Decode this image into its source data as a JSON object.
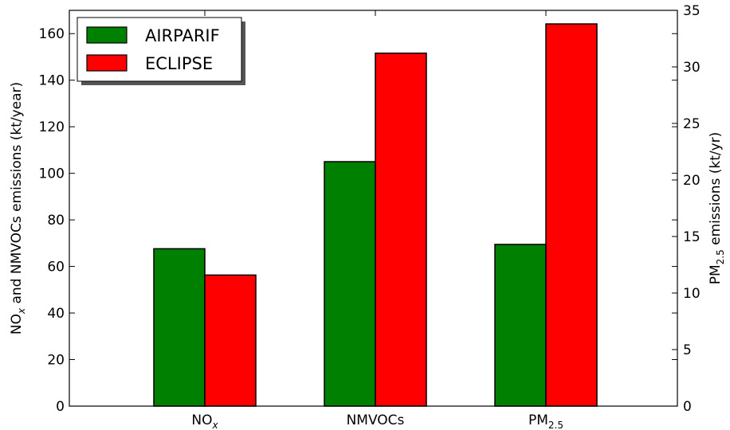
{
  "chart_data": {
    "type": "bar",
    "categories": [
      "NOx",
      "NMVOCs",
      "PM2.5"
    ],
    "series": [
      {
        "name": "AIRPARIF",
        "color": "#008000",
        "axis": "left",
        "values": [
          67.6,
          105,
          null
        ]
      },
      {
        "name": "ECLIPSE",
        "color": "#ff0000",
        "axis": "left",
        "values": [
          56.3,
          151.6,
          null
        ]
      },
      {
        "name": "AIRPARIF",
        "color": "#008000",
        "axis": "right",
        "values": [
          null,
          null,
          14.3
        ]
      },
      {
        "name": "ECLIPSE",
        "color": "#ff0000",
        "axis": "right",
        "values": [
          null,
          null,
          33.8
        ]
      }
    ],
    "ylim_left": [
      0,
      170
    ],
    "yticks_left": [
      0,
      20,
      40,
      60,
      80,
      100,
      120,
      140,
      160
    ],
    "ylim_right": [
      0,
      35
    ],
    "yticks_right": [
      0,
      5,
      10,
      15,
      20,
      25,
      30,
      35
    ],
    "xtick_labels": [
      {
        "base": "NO",
        "sub": "x",
        "sub_italic": true
      },
      {
        "base": "NMVOCs",
        "sub": "",
        "sub_italic": false
      },
      {
        "base": "PM",
        "sub": "2.5",
        "sub_italic": false
      }
    ],
    "ylabel_left": {
      "part1": "NO",
      "sub": "x",
      "part2": " and NMVOCs emissions (kt/year)"
    },
    "ylabel_right": {
      "part1": "PM",
      "sub": "2.5",
      "part2": " emissions (kt/yr)"
    },
    "legend": {
      "placement": "top-left",
      "entries": [
        {
          "label": "AIRPARIF",
          "color": "#008000"
        },
        {
          "label": "ECLIPSE",
          "color": "#ff0000"
        }
      ]
    },
    "grid": false
  }
}
